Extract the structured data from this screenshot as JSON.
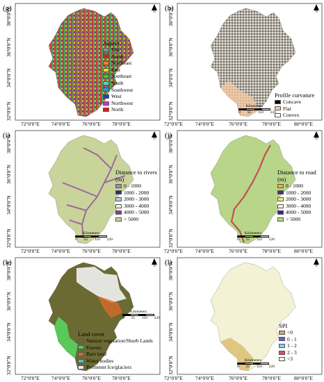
{
  "x_ticks": [
    "72°0'0\"E",
    "74°0'0\"E",
    "76°0'0\"E",
    "78°0'0\"E",
    "80°0'0\"E"
  ],
  "y_ticks": [
    "32°0'0\"N",
    "34°0'0\"N",
    "36°0'0\"N",
    "38°0'0\"N"
  ],
  "north_label": "N",
  "scale": {
    "title": "Kilometers",
    "ticks": [
      "0",
      "55",
      "110",
      "220"
    ]
  },
  "panels": [
    {
      "label": "(g)",
      "legend_title": "Aspect",
      "items": [
        {
          "label": "Flat",
          "color": "#8c8c8c"
        },
        {
          "label": "North",
          "color": "#e31a1c"
        },
        {
          "label": "Northeast",
          "color": "#ff7f27"
        },
        {
          "label": "East",
          "color": "#ffd700"
        },
        {
          "label": "Southeast",
          "color": "#33cc33"
        },
        {
          "label": "South",
          "color": "#66cccc"
        },
        {
          "label": "Southwest",
          "color": "#1f9bd7"
        },
        {
          "label": "West",
          "color": "#1e3cc8"
        },
        {
          "label": "Northwest",
          "color": "#cc33cc"
        },
        {
          "label": "North",
          "color": "#e31a1c"
        }
      ]
    },
    {
      "label": "(h)",
      "legend_title": "Profile curvature",
      "items": [
        {
          "label": "Concave",
          "color": "#000000"
        },
        {
          "label": "Flat",
          "color": "#f2c9a0"
        },
        {
          "label": "Convex",
          "color": "#ffffff"
        }
      ]
    },
    {
      "label": "(i)",
      "legend_title": "Distance to rivers (m)",
      "items": [
        {
          "label": "0 - 1000",
          "color": "#9a8fb8"
        },
        {
          "label": "1000 - 2000",
          "color": "#2b2d7a"
        },
        {
          "label": "2000 - 3000",
          "color": "#b7c7e6"
        },
        {
          "label": "3000 - 4000",
          "color": "#f3f0dc"
        },
        {
          "label": "4000 - 5000",
          "color": "#8b3c9c"
        },
        {
          "label": "> 5000",
          "color": "#c9d49a"
        }
      ]
    },
    {
      "label": "(j)",
      "legend_title": "Distance to road (m)",
      "items": [
        {
          "label": "0 - 1000",
          "color": "#f0b030"
        },
        {
          "label": "1000 - 2000",
          "color": "#5a2a7a"
        },
        {
          "label": "2000 - 3000",
          "color": "#f3e58a"
        },
        {
          "label": "3000 - 4000",
          "color": "#f5f2dc"
        },
        {
          "label": "4000 - 5000",
          "color": "#3b1f9c"
        },
        {
          "label": "> 5000",
          "color": "#b9d58a"
        }
      ]
    },
    {
      "label": "(k)",
      "legend_title": "Land cover",
      "items": [
        {
          "label": "Natural vegetation/Shurb Lands",
          "color": "#6b6a33"
        },
        {
          "label": "Forests",
          "color": "#5ac85a"
        },
        {
          "label": "Bare land",
          "color": "#d86a28"
        },
        {
          "label": "Water bodies",
          "color": "#5bb7c8"
        },
        {
          "label": "Permennt Ice/glaciers",
          "color": "#f2f2f2"
        }
      ]
    },
    {
      "label": "(l)",
      "legend_title": "SPI",
      "items": [
        {
          "label": "<0",
          "color": "#d4a84a"
        },
        {
          "label": "0 - 1",
          "color": "#6a5acd"
        },
        {
          "label": "1 - 2",
          "color": "#87cefa"
        },
        {
          "label": "2 - 3",
          "color": "#e3447a"
        },
        {
          "label": ">3",
          "color": "#f4f2d4"
        }
      ]
    }
  ]
}
